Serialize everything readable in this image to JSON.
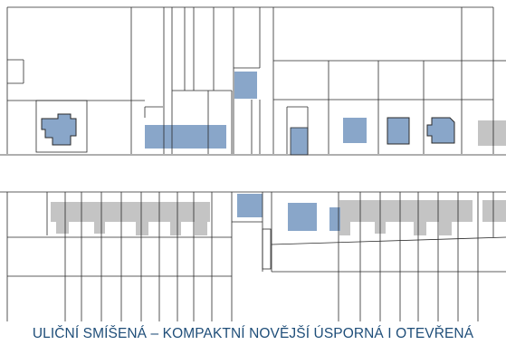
{
  "caption": "ULIČNÍ SMÍŠENÁ  –  KOMPAKTNÍ NOVĚJŠÍ ÚSPORNÁ  I OTEVŘENÁ",
  "colors": {
    "line": "#2a2a2a",
    "background": "#ffffff",
    "new_building_fill": "#89a6c9",
    "existing_building_fill": "#c4c4c4",
    "caption_text": "#1f4e79"
  }
}
